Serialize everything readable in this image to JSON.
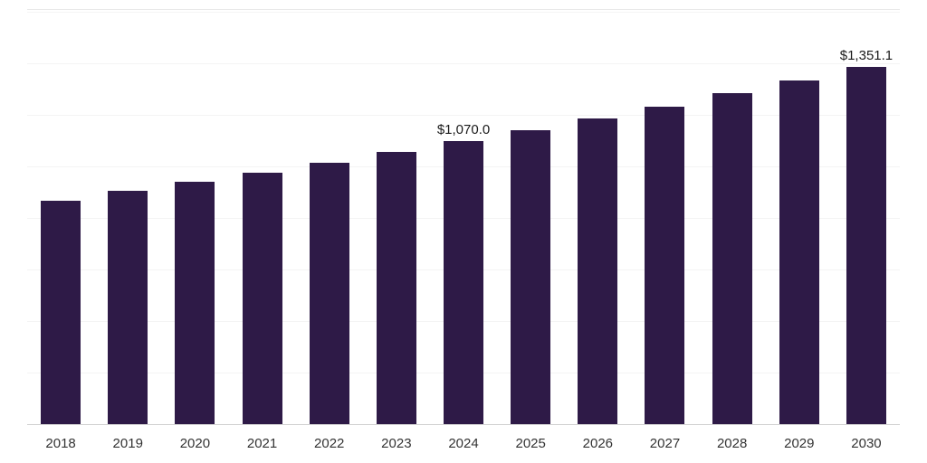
{
  "chart_data": {
    "type": "bar",
    "title": "",
    "xlabel": "",
    "ylabel": "",
    "categories": [
      "2018",
      "2019",
      "2020",
      "2021",
      "2022",
      "2023",
      "2024",
      "2025",
      "2026",
      "2027",
      "2028",
      "2029",
      "2030"
    ],
    "values": [
      843.0,
      880.0,
      915.0,
      950.0,
      986.0,
      1027.0,
      1070.0,
      1109.0,
      1156.0,
      1200.0,
      1251.0,
      1300.0,
      1351.1
    ],
    "data_labels": {
      "2024": "$1,070.0",
      "2030": "$1,351.1"
    },
    "ylim": [
      0,
      1565
    ],
    "grid": "horizontal-faint",
    "legend": "none",
    "bar_color": "#2e1a47",
    "axis_line_color": "#d2d2d2",
    "gridline_color": "#f4f4f4",
    "tick_label_color": "#333333",
    "data_label_color": "#1a1a1a"
  }
}
